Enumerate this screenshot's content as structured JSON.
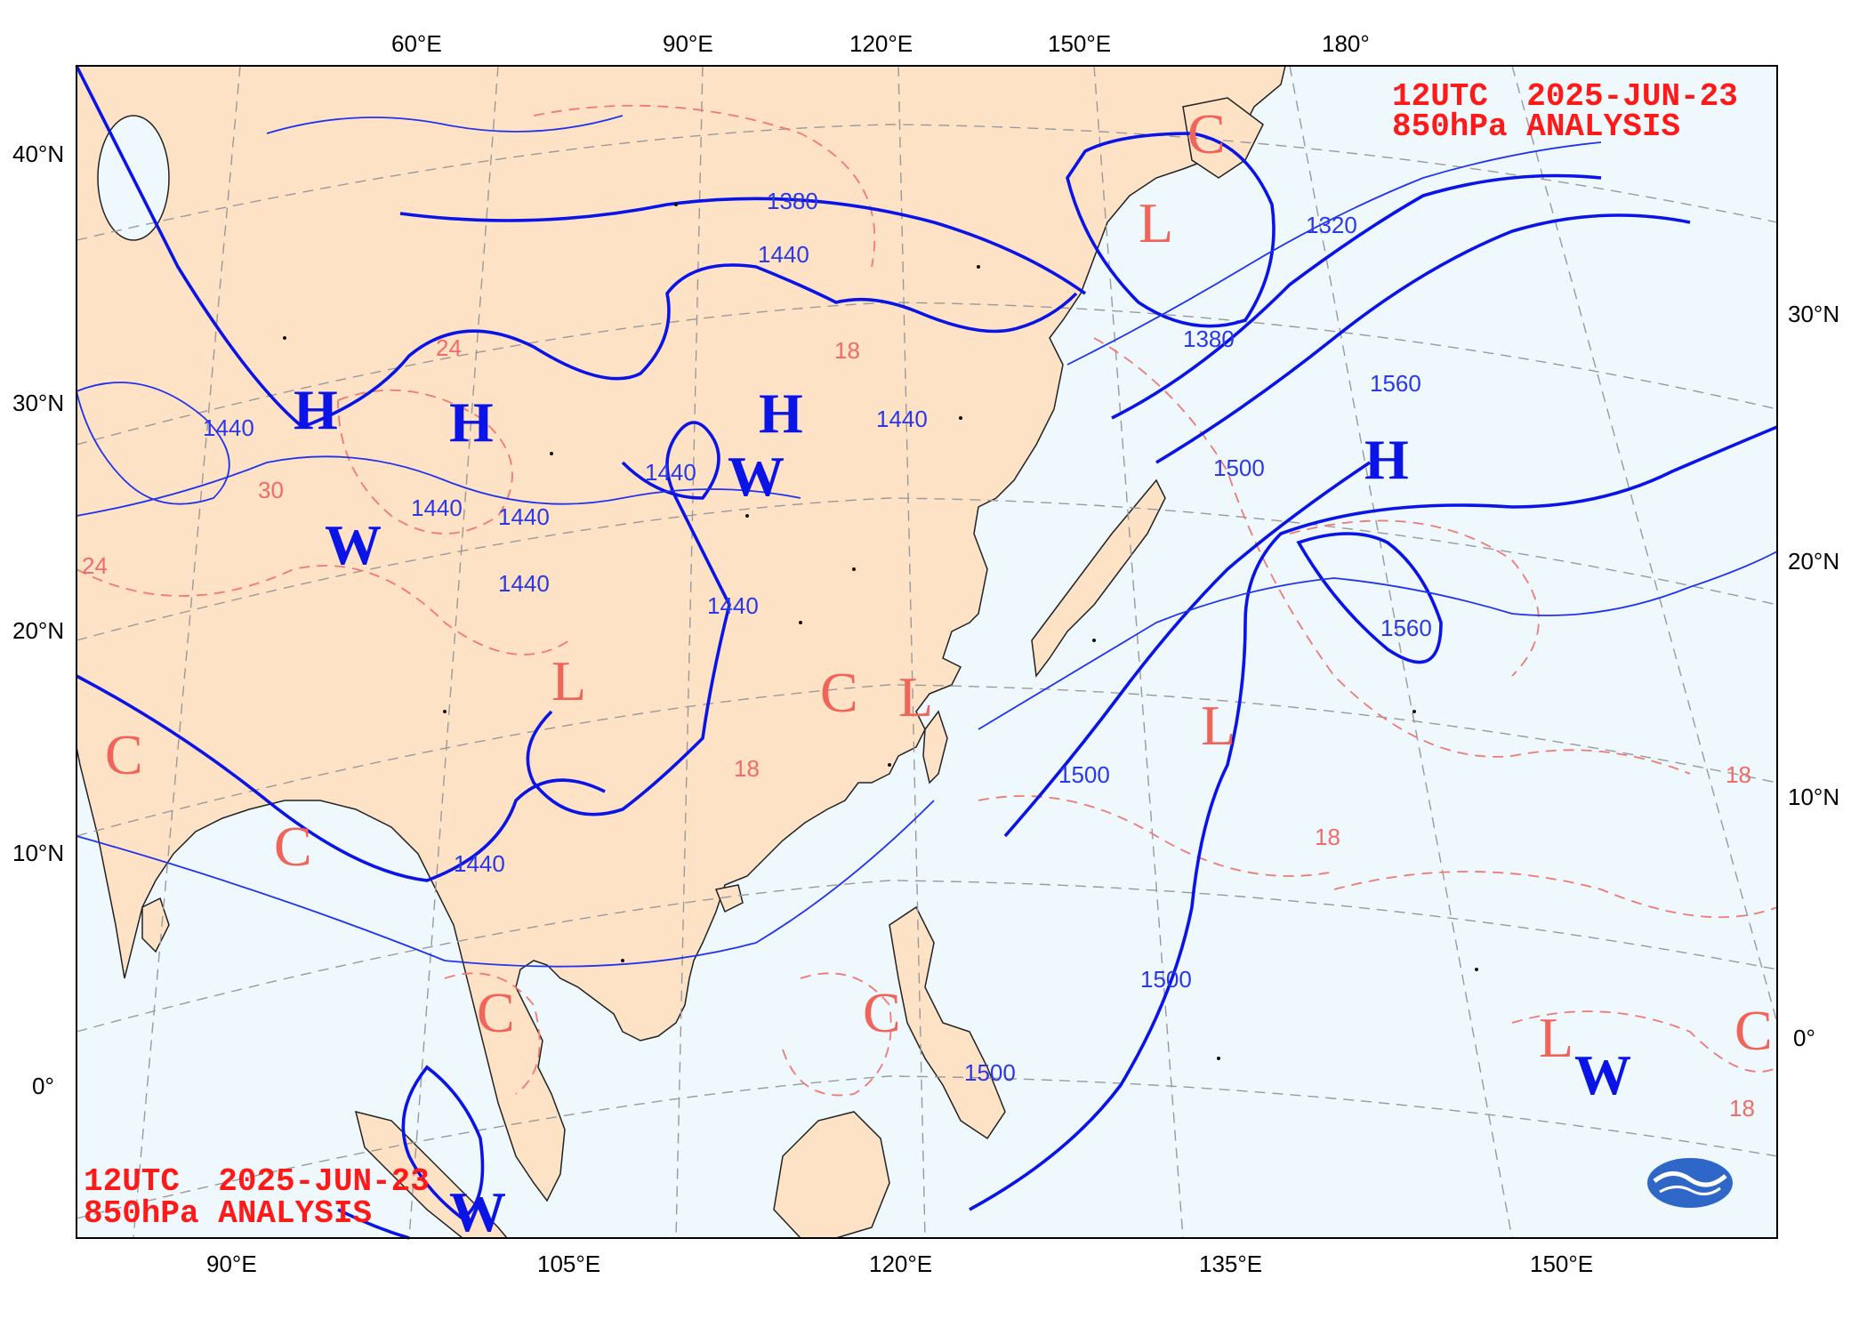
{
  "stamp_top": {
    "line1": "12UTC  2025-JUN-23",
    "line2": "850hPa ANALYSIS"
  },
  "stamp_bottom": {
    "line1": "12UTC  2025-JUN-23",
    "line2": "850hPa ANALYSIS"
  },
  "top_lon_labels": [
    "60°E",
    "90°E",
    "120°E",
    "150°E",
    "180°"
  ],
  "bottom_lon_labels": [
    "90°E",
    "105°E",
    "120°E",
    "135°E",
    "150°E"
  ],
  "left_lat_labels": [
    "40°N",
    "30°N",
    "20°N",
    "10°N",
    "0°"
  ],
  "right_lat_labels": [
    "30°N",
    "20°N",
    "10°N",
    "0°"
  ],
  "height_contour_labels": [
    "1380",
    "1440",
    "1440",
    "1440",
    "1440",
    "1440",
    "1440",
    "1440",
    "1440",
    "1440",
    "1320",
    "1380",
    "1500",
    "1560",
    "1560",
    "1500",
    "1500",
    "1500"
  ],
  "temp_contour_labels": [
    "18",
    "18",
    "18",
    "18",
    "24",
    "30",
    "24",
    "18"
  ],
  "pressure_systems": [
    {
      "label": "H",
      "kind": "high"
    },
    {
      "label": "H",
      "kind": "high"
    },
    {
      "label": "H",
      "kind": "high"
    },
    {
      "label": "H",
      "kind": "high"
    },
    {
      "label": "W",
      "kind": "warm"
    },
    {
      "label": "W",
      "kind": "warm"
    },
    {
      "label": "W",
      "kind": "warm"
    },
    {
      "label": "W",
      "kind": "warm"
    },
    {
      "label": "L",
      "kind": "low"
    },
    {
      "label": "L",
      "kind": "low"
    },
    {
      "label": "L",
      "kind": "low"
    },
    {
      "label": "L",
      "kind": "low"
    },
    {
      "label": "L",
      "kind": "low"
    },
    {
      "label": "C",
      "kind": "cold"
    },
    {
      "label": "C",
      "kind": "cold"
    },
    {
      "label": "C",
      "kind": "cold"
    },
    {
      "label": "C",
      "kind": "cold"
    },
    {
      "label": "C",
      "kind": "cold"
    },
    {
      "label": "C",
      "kind": "cold"
    },
    {
      "label": "C",
      "kind": "cold"
    }
  ],
  "colors": {
    "land": "#fde2c6",
    "sea": "#eef8fd",
    "height_contour": "#0a14e6",
    "temp_contour": "#f07a72",
    "stamp": "#ff1a1a"
  },
  "logo": "cwa-logo-icon"
}
